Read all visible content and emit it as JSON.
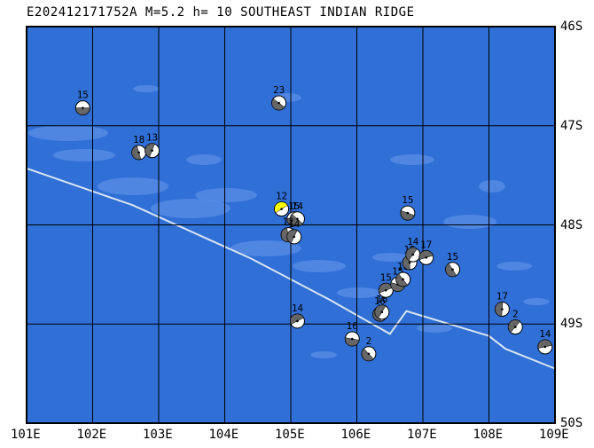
{
  "header": {
    "title": "E202412171752A M=5.2 h= 10 SOUTHEAST INDIAN RIDGE"
  },
  "colors": {
    "ocean": "#2f6fd6",
    "shallow": "#5a8ee6",
    "grid": "#000000",
    "ridge": "#d9e4f2",
    "main_event": "#ffff00"
  },
  "axes": {
    "lon_labels": [
      "101E",
      "102E",
      "103E",
      "104E",
      "105E",
      "106E",
      "107E",
      "108E",
      "109E"
    ],
    "lat_labels": [
      "46S",
      "47S",
      "48S",
      "49S",
      "50S"
    ],
    "lon_range": [
      101,
      109
    ],
    "lat_range": [
      -50,
      -46
    ]
  },
  "ridge": [
    [
      101,
      -47.43
    ],
    [
      102.6,
      -47.8
    ],
    [
      104.4,
      -48.34
    ],
    [
      105.6,
      -48.76
    ],
    [
      106.5,
      -49.1
    ],
    [
      106.75,
      -48.87
    ],
    [
      108.0,
      -49.12
    ],
    [
      108.25,
      -49.25
    ],
    [
      109.0,
      -49.45
    ]
  ],
  "events": [
    {
      "label": "15",
      "lon": 101.85,
      "lat": -46.82
    },
    {
      "label": "23",
      "lon": 104.82,
      "lat": -46.77
    },
    {
      "label": "18",
      "lon": 102.7,
      "lat": -47.27
    },
    {
      "label": "13",
      "lon": 102.9,
      "lat": -47.25
    },
    {
      "label": "12",
      "lon": 104.86,
      "lat": -47.84,
      "main": true
    },
    {
      "label": "15",
      "lon": 105.05,
      "lat": -47.94
    },
    {
      "label": "14",
      "lon": 105.1,
      "lat": -47.94
    },
    {
      "label": "12",
      "lon": 104.96,
      "lat": -48.1
    },
    {
      "label": "14",
      "lon": 105.05,
      "lat": -48.12
    },
    {
      "label": "14",
      "lon": 105.1,
      "lat": -48.97
    },
    {
      "label": "16",
      "lon": 105.93,
      "lat": -49.15
    },
    {
      "label": "2",
      "lon": 106.18,
      "lat": -49.3
    },
    {
      "label": "16",
      "lon": 106.35,
      "lat": -48.9
    },
    {
      "label": "16",
      "lon": 106.38,
      "lat": -48.88
    },
    {
      "label": "15",
      "lon": 106.44,
      "lat": -48.66
    },
    {
      "label": "15",
      "lon": 106.62,
      "lat": -48.6
    },
    {
      "label": "16",
      "lon": 106.7,
      "lat": -48.55
    },
    {
      "label": "15",
      "lon": 106.8,
      "lat": -48.38
    },
    {
      "label": "14",
      "lon": 106.85,
      "lat": -48.3
    },
    {
      "label": "17",
      "lon": 107.05,
      "lat": -48.33
    },
    {
      "label": "15",
      "lon": 106.77,
      "lat": -47.88
    },
    {
      "label": "15",
      "lon": 107.45,
      "lat": -48.45
    },
    {
      "label": "17",
      "lon": 108.2,
      "lat": -48.85
    },
    {
      "label": "2",
      "lon": 108.4,
      "lat": -49.03
    },
    {
      "label": "14",
      "lon": 108.85,
      "lat": -49.23
    }
  ]
}
